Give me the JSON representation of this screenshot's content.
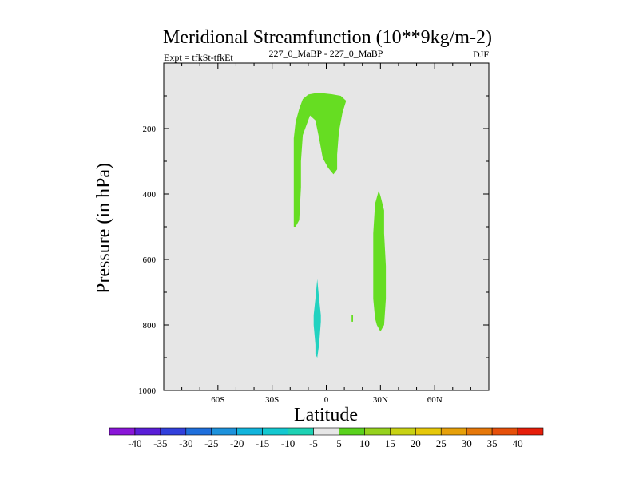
{
  "chart_data": {
    "type": "contour",
    "title": "Meridional Streamfunction (10**9kg/m-2)",
    "subtitle_left": "Expt = tfkSt-tfkEt",
    "subtitle_center": "227_0_MaBP - 227_0_MaBP",
    "subtitle_right": "DJF",
    "xlabel": "Latitude",
    "ylabel": "Pressure (in hPa)",
    "x_ticks": [
      {
        "value": -60,
        "label": "60S"
      },
      {
        "value": -30,
        "label": "30S"
      },
      {
        "value": 0,
        "label": "0"
      },
      {
        "value": 30,
        "label": "30N"
      },
      {
        "value": 60,
        "label": "60N"
      }
    ],
    "y_ticks": [
      {
        "value": 200,
        "label": "200"
      },
      {
        "value": 400,
        "label": "400"
      },
      {
        "value": 600,
        "label": "600"
      },
      {
        "value": 800,
        "label": "800"
      },
      {
        "value": 1000,
        "label": "1000"
      }
    ],
    "xlim": [
      -90,
      90
    ],
    "ylim": [
      1000,
      0
    ],
    "plot_background": "#e6e6e6",
    "colorbar": {
      "labels": [
        "-40",
        "-35",
        "-30",
        "-25",
        "-20",
        "-15",
        "-10",
        "-5",
        "5",
        "10",
        "15",
        "20",
        "25",
        "30",
        "35",
        "40"
      ],
      "colors": [
        "#8a16d8",
        "#5a1ed8",
        "#3240dc",
        "#1f6fdc",
        "#1d92dc",
        "#12b4dc",
        "#14c8d0",
        "#1ed2b4",
        "#e6e6e6",
        "#5ad21e",
        "#96d21e",
        "#c8d214",
        "#e6c80a",
        "#e6a00a",
        "#e6780a",
        "#e6500a",
        "#e61e0a"
      ]
    },
    "regions": [
      {
        "name": "positive-cell-upper",
        "level": "5 to 10",
        "color": "#66dd22",
        "points": [
          [
            -17,
            500
          ],
          [
            -15,
            480
          ],
          [
            -14,
            380
          ],
          [
            -14,
            300
          ],
          [
            -13,
            220
          ],
          [
            -11,
            190
          ],
          [
            -9,
            160
          ],
          [
            -6,
            175
          ],
          [
            -4,
            230
          ],
          [
            -2,
            290
          ],
          [
            1,
            320
          ],
          [
            4,
            340
          ],
          [
            6,
            325
          ],
          [
            6,
            280
          ],
          [
            7,
            210
          ],
          [
            9,
            150
          ],
          [
            11,
            115
          ],
          [
            8,
            100
          ],
          [
            3,
            95
          ],
          [
            -2,
            92
          ],
          [
            -6,
            92
          ],
          [
            -10,
            96
          ],
          [
            -13,
            110
          ],
          [
            -15,
            140
          ],
          [
            -17,
            180
          ],
          [
            -18,
            230
          ],
          [
            -18,
            320
          ],
          [
            -18,
            420
          ],
          [
            -18,
            500
          ]
        ]
      },
      {
        "name": "positive-cell-lower",
        "level": "5 to 10",
        "color": "#66dd22",
        "points": [
          [
            28,
            800
          ],
          [
            30,
            820
          ],
          [
            32,
            800
          ],
          [
            33,
            720
          ],
          [
            33,
            620
          ],
          [
            32,
            520
          ],
          [
            32,
            450
          ],
          [
            30,
            405
          ],
          [
            29,
            390
          ],
          [
            27,
            430
          ],
          [
            26,
            520
          ],
          [
            26,
            620
          ],
          [
            26,
            720
          ],
          [
            27,
            780
          ]
        ]
      },
      {
        "name": "negative-cell",
        "level": "-10 to -5",
        "color": "#22d2c0",
        "points": [
          [
            -6,
            890
          ],
          [
            -5,
            900
          ],
          [
            -4,
            860
          ],
          [
            -3,
            790
          ],
          [
            -3,
            770
          ],
          [
            -4,
            720
          ],
          [
            -5,
            660
          ],
          [
            -6,
            720
          ],
          [
            -7,
            770
          ],
          [
            -7,
            800
          ],
          [
            -6,
            860
          ]
        ]
      },
      {
        "name": "positive-speck",
        "level": "5 to 10",
        "color": "#66dd22",
        "points": [
          [
            14,
            770
          ],
          [
            14.8,
            770
          ],
          [
            14.8,
            790
          ],
          [
            14,
            790
          ]
        ]
      }
    ]
  }
}
